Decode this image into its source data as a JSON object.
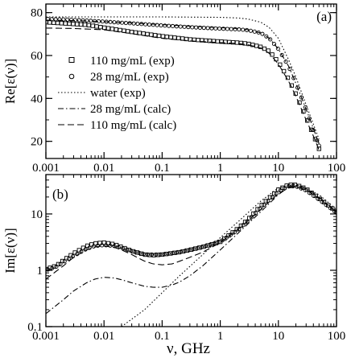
{
  "figure": {
    "xlabel": "ν, GHz"
  },
  "chart_data": [
    {
      "panel": "(a)",
      "type": "scatter",
      "ylabel": "Re[ε(ν)]",
      "xscale": "log",
      "xlim": [
        0.001,
        100
      ],
      "ylim": [
        12,
        84
      ],
      "x_ticks": [
        0.001,
        0.01,
        0.1,
        1,
        10,
        100
      ],
      "x_tick_labels": [
        "0.001",
        "0.01",
        "0.1",
        "1",
        "10",
        "100"
      ],
      "y_ticks": [
        20,
        40,
        60,
        80
      ],
      "y_tick_labels": [
        "20",
        "40",
        "60",
        "80"
      ],
      "legend_position": "left",
      "series": [
        {
          "name": "110 mg/mL (exp)",
          "kind": "square-markers",
          "x": [
            0.001,
            0.002,
            0.005,
            0.01,
            0.03,
            0.1,
            0.3,
            1,
            2,
            3,
            5,
            7,
            10,
            15,
            20,
            30,
            40,
            50
          ],
          "y": [
            75.5,
            75.0,
            74.3,
            73.0,
            71.0,
            69.0,
            67.5,
            66.5,
            66.0,
            65.5,
            64.0,
            62.0,
            57.0,
            49.0,
            42.0,
            31.0,
            23.0,
            16.5
          ]
        },
        {
          "name": "28 mg/mL (exp)",
          "kind": "circle-markers",
          "x": [
            0.001,
            0.002,
            0.005,
            0.01,
            0.03,
            0.1,
            0.3,
            1,
            2,
            3,
            5,
            7,
            10,
            15,
            20,
            30,
            40,
            50
          ],
          "y": [
            77.0,
            76.8,
            76.3,
            75.8,
            75.0,
            74.0,
            73.2,
            72.5,
            72.2,
            71.8,
            70.5,
            68.0,
            63.0,
            55.0,
            47.0,
            35.0,
            25.0,
            18.0
          ]
        },
        {
          "name": "water (exp)",
          "kind": "dotted",
          "x": [
            0.001,
            0.01,
            0.1,
            1,
            2,
            3,
            5,
            7,
            10,
            15,
            20,
            30,
            40,
            50
          ],
          "y": [
            78.0,
            78.0,
            78.0,
            77.8,
            77.5,
            77.0,
            75.5,
            73.0,
            68.0,
            58.0,
            50.0,
            37.0,
            28.0,
            21.0
          ]
        },
        {
          "name": "28 mg/mL (calc)",
          "kind": "dash-dot",
          "x": [
            0.001,
            0.003,
            0.01,
            0.03,
            0.1,
            0.3,
            1,
            2,
            3,
            5,
            7,
            10,
            15,
            20,
            30,
            40,
            50
          ],
          "y": [
            76.5,
            76.3,
            75.8,
            75.2,
            74.4,
            73.7,
            73.0,
            72.6,
            72.0,
            70.5,
            68.0,
            63.0,
            55.0,
            47.0,
            35.0,
            26.0,
            19.0
          ]
        },
        {
          "name": "110 mg/mL (calc)",
          "kind": "dashed",
          "x": [
            0.001,
            0.003,
            0.01,
            0.03,
            0.1,
            0.3,
            1,
            2,
            3,
            5,
            7,
            10,
            15,
            20,
            30,
            40,
            50
          ],
          "y": [
            72.8,
            72.6,
            72.0,
            70.2,
            68.0,
            66.8,
            66.0,
            65.6,
            65.0,
            63.5,
            61.0,
            56.0,
            48.0,
            41.0,
            30.0,
            22.5,
            16.0
          ]
        }
      ]
    },
    {
      "panel": "(b)",
      "type": "scatter",
      "ylabel": "Im[ε(ν)]",
      "xscale": "log",
      "yscale": "log",
      "xlim": [
        0.001,
        100
      ],
      "ylim": [
        0.1,
        50
      ],
      "x_ticks": [
        0.001,
        0.01,
        0.1,
        1,
        10,
        100
      ],
      "x_tick_labels": [
        "0.001",
        "0.01",
        "0.1",
        "1",
        "10",
        "100"
      ],
      "y_ticks": [
        0.1,
        1,
        10
      ],
      "y_tick_labels": [
        "0.1",
        "1",
        "10"
      ],
      "series": [
        {
          "name": "110 mg/mL (exp)",
          "kind": "square-markers",
          "x": [
            0.001,
            0.0015,
            0.002,
            0.003,
            0.005,
            0.007,
            0.01,
            0.015,
            0.02,
            0.03,
            0.05,
            0.07,
            0.1,
            0.2,
            0.3,
            0.5,
            1,
            2,
            3,
            5,
            10,
            15,
            20,
            30,
            50,
            100
          ],
          "y": [
            1.05,
            1.2,
            1.5,
            2.0,
            2.7,
            3.0,
            3.1,
            2.9,
            2.6,
            2.2,
            1.9,
            1.85,
            1.9,
            2.1,
            2.3,
            2.6,
            3.2,
            5.5,
            8.0,
            14.0,
            27.0,
            33.0,
            33.0,
            28.0,
            19.0,
            11.0
          ]
        },
        {
          "name": "28 mg/mL (exp)",
          "kind": "circle-markers",
          "x": [
            0.001,
            0.0015,
            0.002,
            0.003,
            0.005,
            0.007,
            0.01,
            0.015,
            0.02,
            0.03,
            0.05,
            0.1,
            0.2,
            0.3,
            0.5,
            1,
            2,
            3,
            5,
            10,
            15,
            20,
            30,
            50,
            100
          ],
          "y": [
            1.0,
            1.15,
            1.4,
            1.8,
            2.4,
            2.7,
            2.8,
            2.7,
            2.5,
            2.2,
            1.9,
            1.9,
            2.1,
            2.3,
            2.6,
            3.2,
            5.2,
            7.6,
            13.0,
            25.0,
            31.0,
            31.0,
            26.0,
            18.0,
            10.5
          ]
        },
        {
          "name": "water (exp)",
          "kind": "dotted",
          "x": [
            0.02,
            0.05,
            0.1,
            0.2,
            0.5,
            1,
            2,
            5,
            10,
            20,
            50,
            100
          ],
          "y": [
            0.1,
            0.2,
            0.4,
            0.8,
            1.9,
            3.8,
            7.2,
            17.0,
            29.0,
            34.0,
            22.0,
            12.0
          ]
        },
        {
          "name": "28 mg/mL (calc)",
          "kind": "dash-dot",
          "x": [
            0.001,
            0.002,
            0.003,
            0.005,
            0.007,
            0.01,
            0.015,
            0.02,
            0.03,
            0.05,
            0.07,
            0.1,
            0.15,
            0.2,
            0.3,
            0.5,
            1,
            2,
            5,
            10,
            15,
            20,
            30,
            50,
            100
          ],
          "y": [
            0.17,
            0.3,
            0.43,
            0.6,
            0.7,
            0.75,
            0.73,
            0.68,
            0.6,
            0.52,
            0.5,
            0.5,
            0.55,
            0.62,
            0.8,
            1.2,
            2.3,
            4.5,
            11.0,
            22.0,
            30.0,
            32.0,
            29.0,
            20.0,
            11.0
          ]
        },
        {
          "name": "110 mg/mL (calc)",
          "kind": "dashed",
          "x": [
            0.001,
            0.002,
            0.003,
            0.005,
            0.007,
            0.01,
            0.015,
            0.02,
            0.03,
            0.05,
            0.07,
            0.1,
            0.15,
            0.2,
            0.3,
            0.5,
            1,
            2,
            5,
            10,
            15,
            20,
            30,
            50,
            100
          ],
          "y": [
            0.7,
            1.2,
            1.7,
            2.3,
            2.6,
            2.7,
            2.55,
            2.3,
            1.9,
            1.45,
            1.3,
            1.25,
            1.3,
            1.45,
            1.7,
            2.1,
            3.1,
            5.3,
            12.0,
            23.0,
            29.0,
            30.0,
            27.0,
            19.0,
            10.5
          ]
        }
      ]
    }
  ]
}
